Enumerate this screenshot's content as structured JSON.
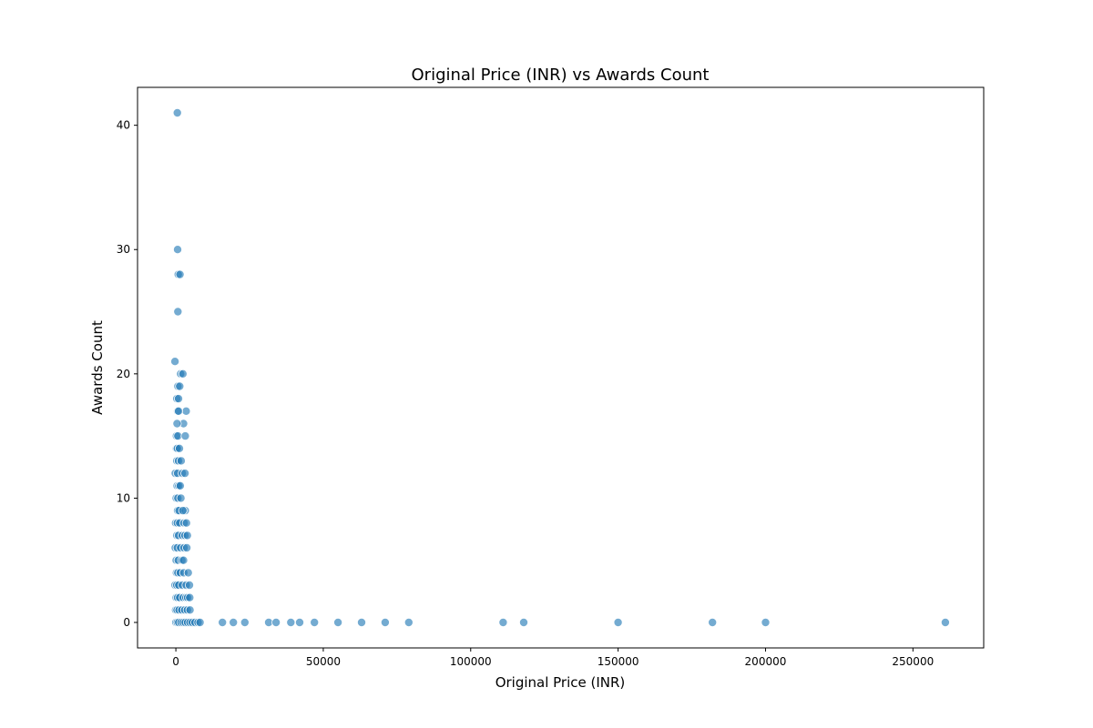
{
  "chart_data": {
    "type": "scatter",
    "title": "Original Price (INR) vs Awards Count",
    "xlabel": "Original Price (INR)",
    "ylabel": "Awards Count",
    "xlim": [
      -13000,
      274000
    ],
    "ylim": [
      -2.05,
      43.05
    ],
    "xticks": [
      0,
      50000,
      100000,
      150000,
      200000,
      250000
    ],
    "yticks": [
      0,
      10,
      20,
      30,
      40
    ],
    "grid": false,
    "point_color": "#1f77b4",
    "points": [
      [
        500,
        41
      ],
      [
        600,
        30
      ],
      [
        800,
        28
      ],
      [
        1400,
        28
      ],
      [
        700,
        25
      ],
      [
        -300,
        21
      ],
      [
        1600,
        20
      ],
      [
        2400,
        20
      ],
      [
        700,
        19
      ],
      [
        1300,
        19
      ],
      [
        300,
        18
      ],
      [
        900,
        18
      ],
      [
        3500,
        17
      ],
      [
        600,
        17
      ],
      [
        900,
        17
      ],
      [
        2600,
        16
      ],
      [
        400,
        16
      ],
      [
        200,
        15
      ],
      [
        700,
        15
      ],
      [
        3200,
        15
      ],
      [
        200,
        14
      ],
      [
        500,
        14
      ],
      [
        1200,
        14
      ],
      [
        300,
        13
      ],
      [
        900,
        13
      ],
      [
        1800,
        13
      ],
      [
        -200,
        12
      ],
      [
        600,
        12
      ],
      [
        2200,
        12
      ],
      [
        3100,
        12
      ],
      [
        400,
        11
      ],
      [
        1000,
        11
      ],
      [
        1500,
        11
      ],
      [
        100,
        10
      ],
      [
        700,
        10
      ],
      [
        1700,
        10
      ],
      [
        600,
        9
      ],
      [
        1100,
        9
      ],
      [
        3200,
        9
      ],
      [
        2400,
        9
      ],
      [
        -100,
        8
      ],
      [
        500,
        8
      ],
      [
        1300,
        8
      ],
      [
        2800,
        8
      ],
      [
        3600,
        8
      ],
      [
        300,
        7
      ],
      [
        900,
        7
      ],
      [
        2200,
        7
      ],
      [
        3100,
        7
      ],
      [
        3900,
        7
      ],
      [
        -200,
        6
      ],
      [
        500,
        6
      ],
      [
        1600,
        6
      ],
      [
        2800,
        6
      ],
      [
        3700,
        6
      ],
      [
        100,
        5
      ],
      [
        800,
        5
      ],
      [
        2000,
        5
      ],
      [
        2600,
        5
      ],
      [
        200,
        4
      ],
      [
        700,
        4
      ],
      [
        1500,
        4
      ],
      [
        2700,
        4
      ],
      [
        4200,
        4
      ],
      [
        -300,
        3
      ],
      [
        300,
        3
      ],
      [
        1000,
        3
      ],
      [
        2200,
        3
      ],
      [
        3500,
        3
      ],
      [
        4600,
        3
      ],
      [
        100,
        2
      ],
      [
        600,
        2
      ],
      [
        1300,
        2
      ],
      [
        2500,
        2
      ],
      [
        3400,
        2
      ],
      [
        4000,
        2
      ],
      [
        4700,
        2
      ],
      [
        -100,
        1
      ],
      [
        400,
        1
      ],
      [
        1100,
        1
      ],
      [
        2000,
        1
      ],
      [
        3000,
        1
      ],
      [
        3900,
        1
      ],
      [
        4800,
        1
      ],
      [
        0,
        0
      ],
      [
        500,
        0
      ],
      [
        1000,
        0
      ],
      [
        1800,
        0
      ],
      [
        2500,
        0
      ],
      [
        3200,
        0
      ],
      [
        4000,
        0
      ],
      [
        4800,
        0
      ],
      [
        5600,
        0
      ],
      [
        6500,
        0
      ],
      [
        7500,
        0
      ],
      [
        8200,
        0
      ],
      [
        15800,
        0
      ],
      [
        23400,
        0
      ],
      [
        19500,
        0
      ],
      [
        31500,
        0
      ],
      [
        34000,
        0
      ],
      [
        39000,
        0
      ],
      [
        42000,
        0
      ],
      [
        47000,
        0
      ],
      [
        55000,
        0
      ],
      [
        63000,
        0
      ],
      [
        71000,
        0
      ],
      [
        79000,
        0
      ],
      [
        111000,
        0
      ],
      [
        118000,
        0
      ],
      [
        150000,
        0
      ],
      [
        182000,
        0
      ],
      [
        200000,
        0
      ],
      [
        261000,
        0
      ]
    ]
  }
}
